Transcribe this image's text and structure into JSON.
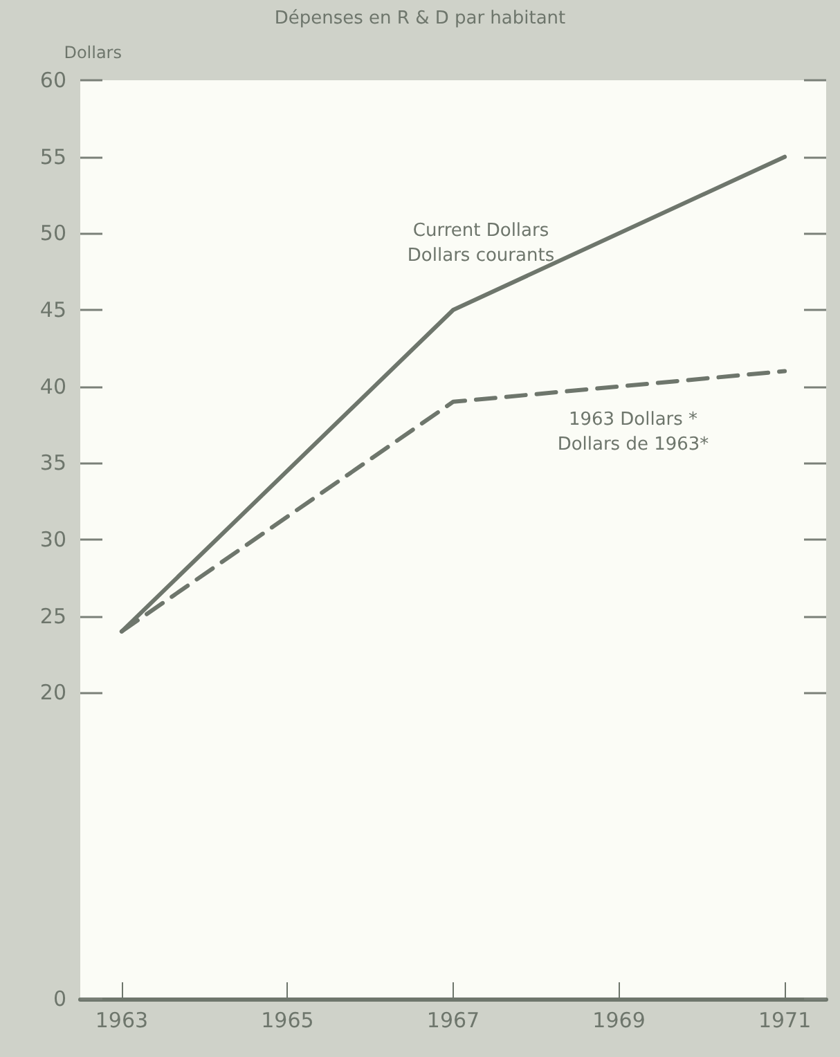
{
  "chart_data": {
    "type": "line",
    "title": "Dépenses en R & D par habitant",
    "ylabel": "Dollars",
    "x": [
      1963,
      1967,
      1971
    ],
    "series": [
      {
        "name": "Current Dollars\nDollars courants",
        "color": "#6e766c",
        "values": [
          24,
          45,
          55
        ],
        "line_style": "solid"
      },
      {
        "name": "1963 Dollars *\nDollars de 1963*",
        "color": "#6e766c",
        "values": [
          24,
          39,
          41
        ],
        "line_style": "dashed"
      }
    ],
    "xlim": [
      1962.5,
      1971.5
    ],
    "xticks": [
      1963,
      1965,
      1967,
      1969,
      1971
    ],
    "ylim": [
      0,
      60
    ],
    "yticks": [
      0,
      20,
      25,
      30,
      35,
      40,
      45,
      50,
      55,
      60
    ],
    "grid": false,
    "legend": false,
    "marker": "none"
  }
}
